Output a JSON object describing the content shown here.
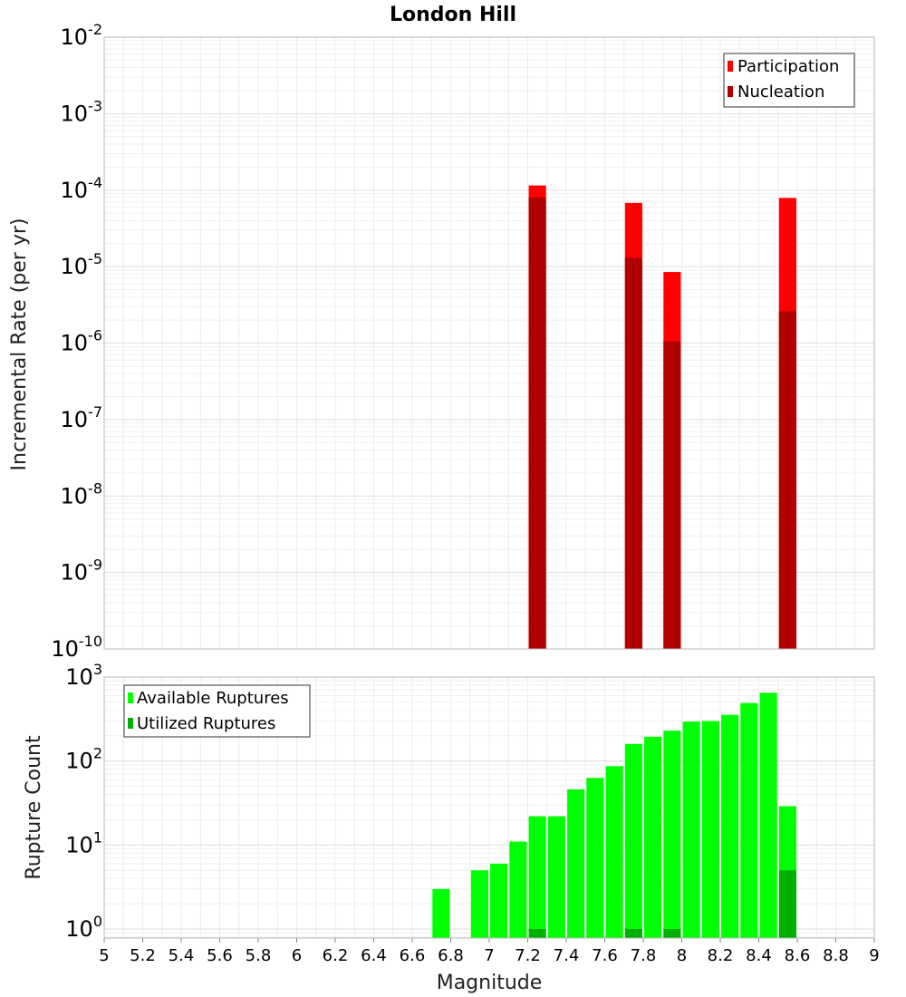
{
  "chart_data": [
    {
      "type": "bar",
      "title": "London Hill",
      "ylabel": "Incremental Rate (per yr)",
      "xlim": [
        5,
        9
      ],
      "ylim": [
        1e-10,
        0.01
      ],
      "yscale": "log",
      "bar_width": 0.09,
      "legend_position": "top-right",
      "y_ticks": [
        {
          "exp": "-10"
        },
        {
          "exp": "-9"
        },
        {
          "exp": "-8"
        },
        {
          "exp": "-7"
        },
        {
          "exp": "-6"
        },
        {
          "exp": "-5"
        },
        {
          "exp": "-4"
        },
        {
          "exp": "-3"
        },
        {
          "exp": "-2"
        }
      ],
      "series": [
        {
          "name": "Participation",
          "color": "#ff0000",
          "points": [
            {
              "x": 7.25,
              "y": 0.000115
            },
            {
              "x": 7.75,
              "y": 6.8e-05
            },
            {
              "x": 7.95,
              "y": 8.5e-06
            },
            {
              "x": 8.55,
              "y": 7.9e-05
            }
          ]
        },
        {
          "name": "Nucleation",
          "color": "#b00000",
          "points": [
            {
              "x": 7.25,
              "y": 8e-05
            },
            {
              "x": 7.75,
              "y": 1.3e-05
            },
            {
              "x": 7.95,
              "y": 1.05e-06
            },
            {
              "x": 8.55,
              "y": 2.6e-06
            }
          ]
        }
      ]
    },
    {
      "type": "bar",
      "xlabel": "Magnitude",
      "ylabel": "Rupture Count",
      "xlim": [
        5,
        9
      ],
      "ylim": [
        0.78,
        1000
      ],
      "yscale": "log",
      "bar_width": 0.09,
      "legend_position": "top-left",
      "y_ticks": [
        {
          "value": 1,
          "base": "10",
          "exp": "0"
        },
        {
          "value": 10,
          "base": "10",
          "exp": "1"
        },
        {
          "value": 100,
          "base": "10",
          "exp": "2"
        },
        {
          "value": 1000,
          "base": "10",
          "exp": "3"
        }
      ],
      "x_ticks": [
        "5",
        "5.2",
        "5.4",
        "5.6",
        "5.8",
        "6",
        "6.2",
        "6.4",
        "6.6",
        "6.8",
        "7",
        "7.2",
        "7.4",
        "7.6",
        "7.8",
        "8",
        "8.2",
        "8.4",
        "8.6",
        "8.8",
        "9"
      ],
      "series": [
        {
          "name": "Available Ruptures",
          "color": "#00ff00",
          "points": [
            {
              "x": 6.75,
              "y": 3
            },
            {
              "x": 6.95,
              "y": 5
            },
            {
              "x": 7.05,
              "y": 6
            },
            {
              "x": 7.15,
              "y": 11
            },
            {
              "x": 7.25,
              "y": 22
            },
            {
              "x": 7.35,
              "y": 22
            },
            {
              "x": 7.45,
              "y": 46
            },
            {
              "x": 7.55,
              "y": 63
            },
            {
              "x": 7.65,
              "y": 87
            },
            {
              "x": 7.75,
              "y": 160
            },
            {
              "x": 7.85,
              "y": 195
            },
            {
              "x": 7.95,
              "y": 230
            },
            {
              "x": 8.05,
              "y": 295
            },
            {
              "x": 8.15,
              "y": 300
            },
            {
              "x": 8.25,
              "y": 355
            },
            {
              "x": 8.35,
              "y": 490
            },
            {
              "x": 8.45,
              "y": 650
            },
            {
              "x": 8.55,
              "y": 29
            }
          ]
        },
        {
          "name": "Utilized Ruptures",
          "color": "#00b000",
          "points": [
            {
              "x": 7.25,
              "y": 1
            },
            {
              "x": 7.75,
              "y": 1
            },
            {
              "x": 7.95,
              "y": 1
            },
            {
              "x": 8.55,
              "y": 5
            }
          ]
        }
      ]
    }
  ],
  "top_tick_base": "10"
}
